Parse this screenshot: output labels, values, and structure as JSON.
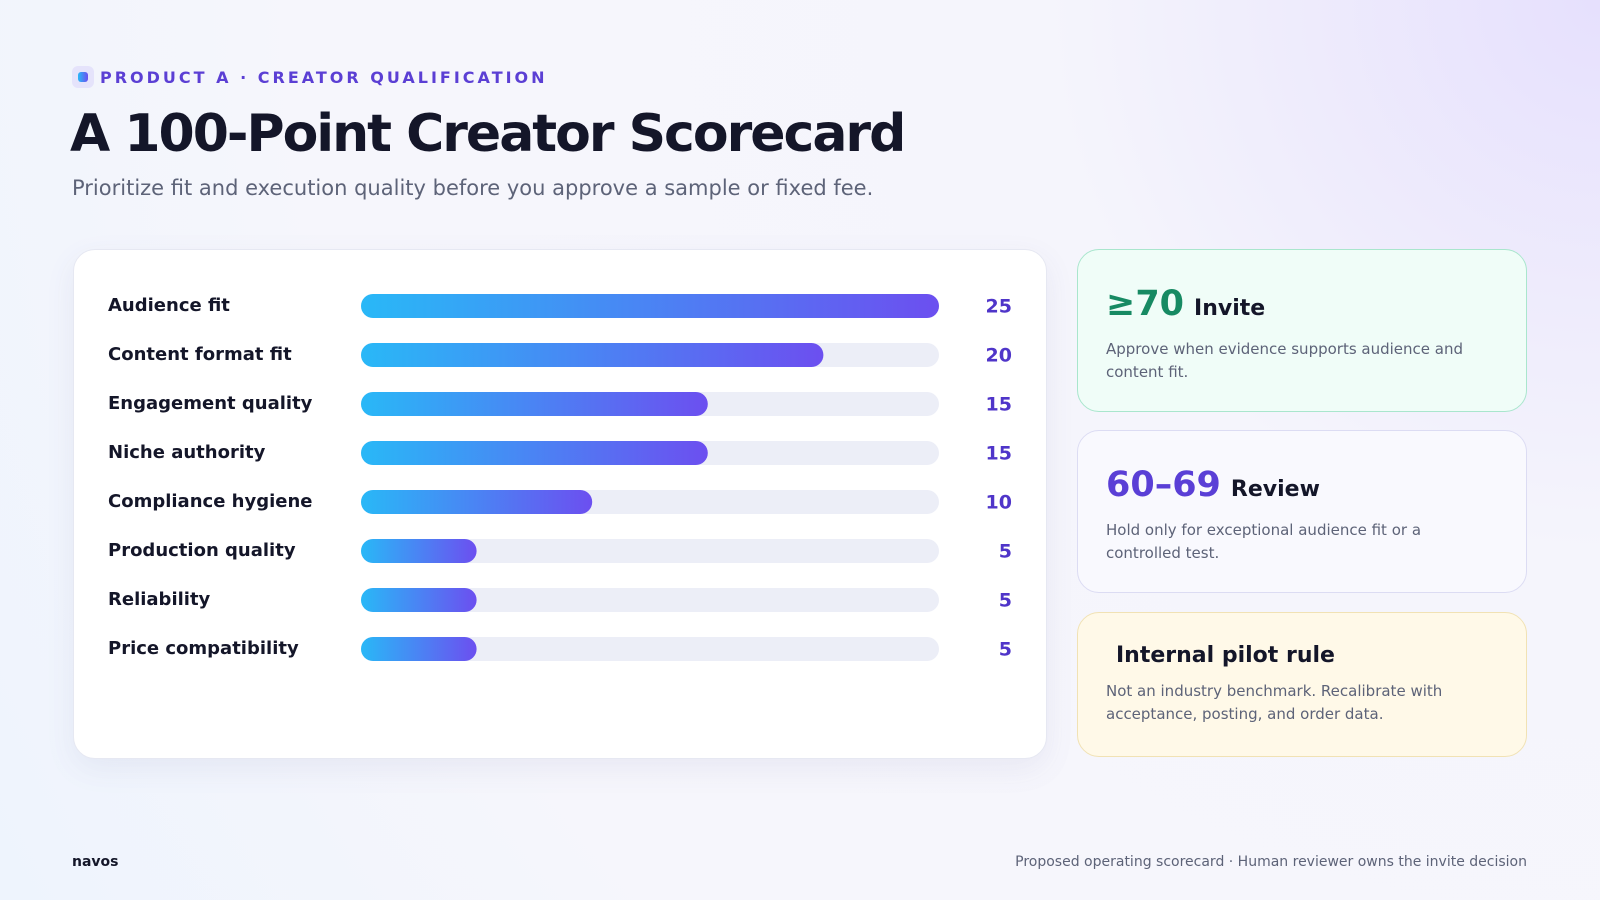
{
  "eyebrow": "PRODUCT A · CREATOR QUALIFICATION",
  "chart_data": {
    "type": "bar",
    "orientation": "horizontal",
    "title": "A 100-Point Creator Scorecard",
    "subtitle": "Prioritize fit and execution quality before you approve a sample or fixed fee.",
    "categories": [
      "Audience fit",
      "Content format fit",
      "Engagement quality",
      "Niche authority",
      "Compliance hygiene",
      "Production quality",
      "Reliability",
      "Price compatibility"
    ],
    "values": [
      25,
      20,
      15,
      15,
      10,
      5,
      5,
      5
    ],
    "color": [
      "#29b8f7",
      "#6c4ff0"
    ],
    "xlim": [
      0,
      25
    ]
  },
  "cards": [
    {
      "score": "≥70",
      "label": "Invite",
      "text": "Approve when evidence supports audience and content fit."
    },
    {
      "score": "60–69",
      "label": "Review",
      "text": "Hold only for exceptional audience fit or a controlled test."
    },
    {
      "label": "Internal pilot rule",
      "text": "Not an industry benchmark. Recalibrate with acceptance, posting, and order data."
    }
  ],
  "footer": {
    "brand": "navos",
    "note": "Proposed operating scorecard · Human reviewer owns the invite decision"
  }
}
